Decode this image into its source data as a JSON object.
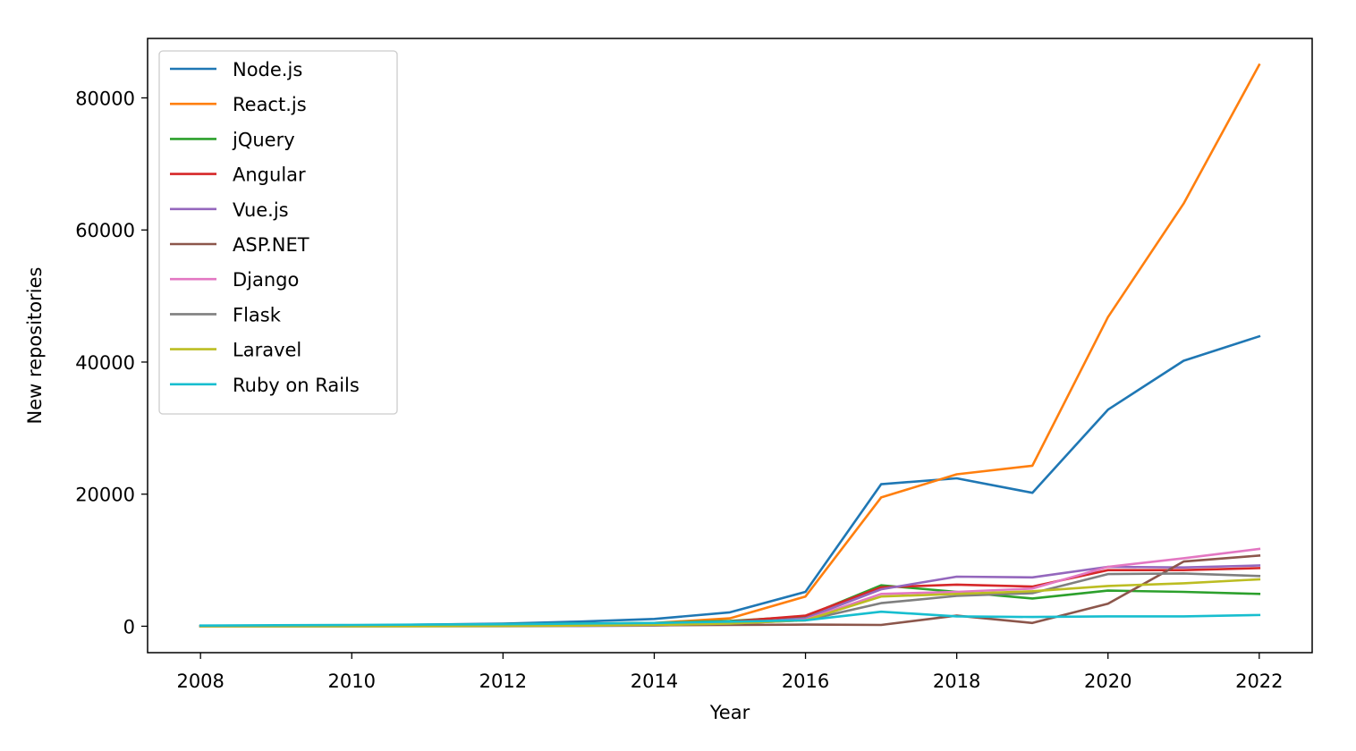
{
  "chart_data": {
    "type": "line",
    "title": "",
    "xlabel": "Year",
    "ylabel": "New repositories",
    "xlim": [
      2007.3,
      2022.7
    ],
    "ylim": [
      -4000,
      89000
    ],
    "xticks": [
      2008,
      2010,
      2012,
      2014,
      2016,
      2018,
      2020,
      2022
    ],
    "yticks": [
      0,
      20000,
      40000,
      60000,
      80000
    ],
    "grid": false,
    "legend_position": "top-left",
    "x": [
      2008,
      2009,
      2010,
      2011,
      2012,
      2013,
      2014,
      2015,
      2016,
      2017,
      2018,
      2019,
      2020,
      2021,
      2022
    ],
    "series": [
      {
        "name": "Node.js",
        "color": "#1f77b4",
        "values": [
          20,
          50,
          100,
          250,
          400,
          700,
          1100,
          2100,
          5200,
          21500,
          22400,
          20200,
          32800,
          40200,
          43900
        ]
      },
      {
        "name": "React.js",
        "color": "#ff7f0e",
        "values": [
          10,
          20,
          40,
          80,
          150,
          300,
          500,
          1200,
          4500,
          19500,
          23000,
          24300,
          46800,
          64000,
          85000
        ]
      },
      {
        "name": "jQuery",
        "color": "#2ca02c",
        "values": [
          50,
          80,
          120,
          200,
          300,
          400,
          500,
          800,
          1500,
          6200,
          5200,
          4200,
          5400,
          5200,
          4900
        ]
      },
      {
        "name": "Angular",
        "color": "#d62728",
        "values": [
          0,
          0,
          10,
          30,
          80,
          150,
          300,
          700,
          1600,
          5900,
          6300,
          6000,
          8500,
          8500,
          8800
        ]
      },
      {
        "name": "Vue.js",
        "color": "#9467bd",
        "values": [
          0,
          0,
          0,
          0,
          10,
          30,
          100,
          400,
          1200,
          5600,
          7500,
          7400,
          9000,
          8900,
          9200
        ]
      },
      {
        "name": "ASP.NET",
        "color": "#8c564b",
        "values": [
          30,
          40,
          60,
          80,
          100,
          120,
          150,
          200,
          250,
          200,
          1600,
          500,
          3400,
          9800,
          10700
        ]
      },
      {
        "name": "Django",
        "color": "#e377c2",
        "values": [
          20,
          30,
          50,
          80,
          120,
          200,
          300,
          500,
          1000,
          4900,
          5200,
          5700,
          9000,
          10300,
          11700
        ]
      },
      {
        "name": "Flask",
        "color": "#7f7f7f",
        "values": [
          0,
          0,
          10,
          30,
          60,
          100,
          200,
          400,
          900,
          3500,
          4600,
          5000,
          7900,
          8000,
          7600
        ]
      },
      {
        "name": "Laravel",
        "color": "#bcbd22",
        "values": [
          0,
          0,
          0,
          10,
          40,
          100,
          200,
          400,
          900,
          4500,
          4900,
          5300,
          6100,
          6500,
          7100
        ]
      },
      {
        "name": "Ruby on Rails",
        "color": "#17becf",
        "values": [
          100,
          150,
          200,
          250,
          300,
          400,
          500,
          700,
          900,
          2200,
          1500,
          1400,
          1500,
          1500,
          1700
        ]
      }
    ]
  }
}
